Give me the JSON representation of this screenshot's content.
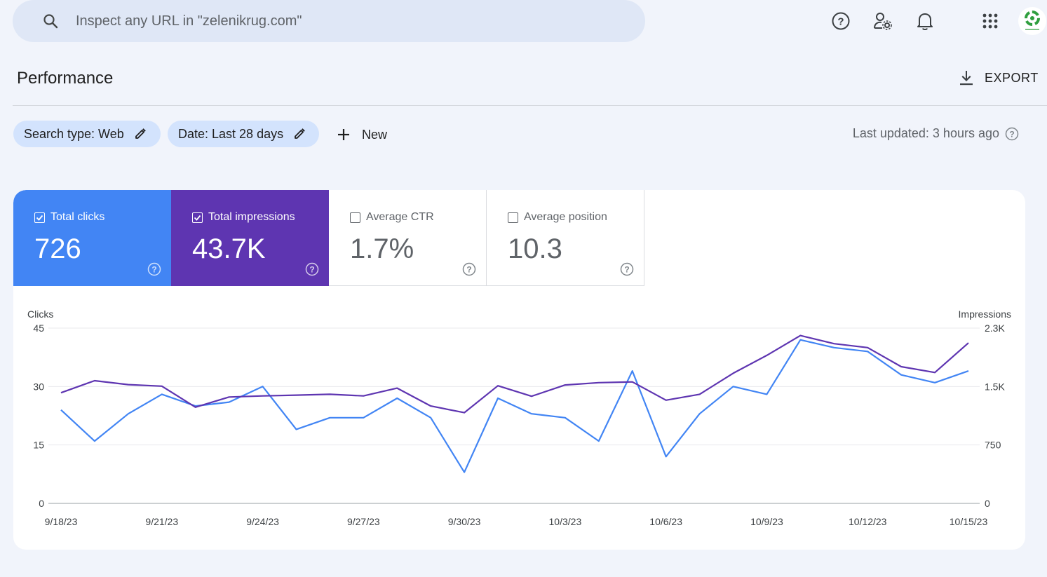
{
  "search": {
    "placeholder": "Inspect any URL in \"zelenikrug.com\""
  },
  "header": {
    "icons": [
      "help-icon",
      "manage-users-icon",
      "notifications-icon",
      "apps-grid-icon"
    ],
    "avatar": "site-avatar"
  },
  "page": {
    "title": "Performance",
    "export_label": "EXPORT"
  },
  "filters": {
    "search_type": "Search type: Web",
    "date": "Date: Last 28 days",
    "new_label": "New",
    "last_updated": "Last updated: 3 hours ago"
  },
  "metrics": [
    {
      "label": "Total clicks",
      "value": "726",
      "checked": true,
      "color": "#4285f4"
    },
    {
      "label": "Total impressions",
      "value": "43.7K",
      "checked": true,
      "color": "#5e35b1"
    },
    {
      "label": "Average CTR",
      "value": "1.7%",
      "checked": false
    },
    {
      "label": "Average position",
      "value": "10.3",
      "checked": false
    }
  ],
  "chart_data": {
    "type": "line",
    "left_axis_title": "Clicks",
    "right_axis_title": "Impressions",
    "left_ticks": [
      "0",
      "15",
      "30",
      "45"
    ],
    "right_ticks": [
      "0",
      "750",
      "1.5K",
      "2.3K"
    ],
    "ylim_left": [
      0,
      45
    ],
    "ylim_right": [
      0,
      2250
    ],
    "x": [
      "9/18/23",
      "9/19/23",
      "9/20/23",
      "9/21/23",
      "9/22/23",
      "9/23/23",
      "9/24/23",
      "9/25/23",
      "9/26/23",
      "9/27/23",
      "9/28/23",
      "9/29/23",
      "9/30/23",
      "10/1/23",
      "10/2/23",
      "10/3/23",
      "10/4/23",
      "10/5/23",
      "10/6/23",
      "10/7/23",
      "10/8/23",
      "10/9/23",
      "10/10/23",
      "10/11/23",
      "10/12/23",
      "10/13/23",
      "10/14/23",
      "10/15/23"
    ],
    "x_tick_labels": [
      "9/18/23",
      "9/21/23",
      "9/24/23",
      "9/27/23",
      "9/30/23",
      "10/3/23",
      "10/6/23",
      "10/9/23",
      "10/12/23",
      "10/15/23"
    ],
    "x_tick_indices": [
      0,
      3,
      6,
      9,
      12,
      15,
      18,
      21,
      24,
      27
    ],
    "grid": true,
    "series": [
      {
        "axis": "left",
        "color": "#4285f4",
        "values": [
          24,
          16,
          23,
          28,
          25,
          26,
          30,
          19,
          22,
          22,
          27,
          22,
          8,
          27,
          23,
          22,
          16,
          34,
          12,
          23,
          30,
          28,
          42,
          40,
          39,
          33,
          31,
          34
        ]
      },
      {
        "axis": "right",
        "color": "#5e35b1",
        "values": [
          1420,
          1575,
          1525,
          1505,
          1235,
          1365,
          1380,
          1390,
          1400,
          1380,
          1480,
          1250,
          1165,
          1510,
          1375,
          1520,
          1550,
          1560,
          1325,
          1400,
          1670,
          1900,
          2155,
          2050,
          2000,
          1755,
          1680,
          2060
        ]
      }
    ]
  }
}
